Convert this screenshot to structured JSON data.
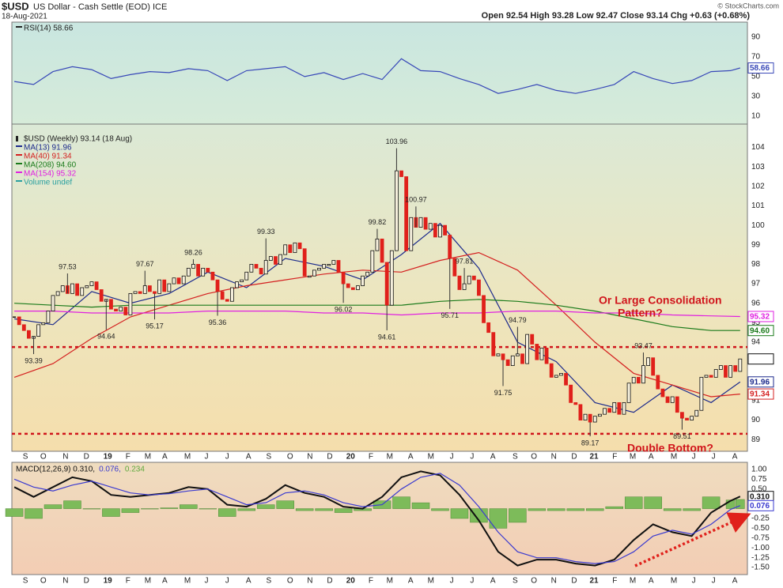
{
  "header": {
    "symbol": "$USD",
    "name": "US Dollar - Cash Settle (EOD) ICE",
    "date": "18-Aug-2021",
    "quote": "Open 92.54 High 93.28 Low 92.47 Close 93.14 Chg +0.63 (+0.68%)",
    "credit": "© StockCharts.com"
  },
  "chart_data": [
    {
      "type": "line",
      "ylim": [
        2,
        105
      ],
      "yticks": [
        10,
        30,
        50,
        70,
        90
      ],
      "levels": [
        30,
        50,
        70
      ],
      "grid": true,
      "series": [
        {
          "name": "RSI(14) 58.66",
          "color": "#3848b8",
          "x": [
            0,
            4,
            8,
            12,
            16,
            20,
            24,
            28,
            32,
            36,
            40,
            44,
            48,
            52,
            56,
            60,
            64,
            68,
            72,
            76,
            80,
            84,
            88,
            92,
            96,
            100,
            104,
            108,
            112,
            116,
            120,
            124,
            128,
            132,
            136,
            140,
            144,
            148,
            150
          ],
          "values": [
            45,
            42,
            55,
            60,
            57,
            48,
            52,
            55,
            54,
            58,
            56,
            46,
            56,
            58,
            60,
            50,
            54,
            47,
            53,
            47,
            68,
            56,
            55,
            48,
            42,
            33,
            37,
            42,
            36,
            33,
            37,
            42,
            55,
            48,
            43,
            46,
            55,
            56,
            58.66
          ]
        }
      ]
    },
    {
      "type": "candlestick",
      "title": "$USD (Weekly) 93.14 (18 Aug)",
      "up_color": "#111111",
      "down_color": "#e0201b",
      "xlim": [
        -0.5,
        151.5
      ],
      "xticks": [
        {
          "value": 2.3,
          "label": "S"
        },
        {
          "value": 6.0,
          "label": "O"
        },
        {
          "value": 10.6,
          "label": "N"
        },
        {
          "value": 14.9,
          "label": "D"
        },
        {
          "value": 19.3,
          "label": "19"
        },
        {
          "value": 23.5,
          "label": "F"
        },
        {
          "value": 27.6,
          "label": "M"
        },
        {
          "value": 31.1,
          "label": "A"
        },
        {
          "value": 35.8,
          "label": "M"
        },
        {
          "value": 39.7,
          "label": "J"
        },
        {
          "value": 44.0,
          "label": "J"
        },
        {
          "value": 48.4,
          "label": "A"
        },
        {
          "value": 52.6,
          "label": "S"
        },
        {
          "value": 57.0,
          "label": "O"
        },
        {
          "value": 61.1,
          "label": "N"
        },
        {
          "value": 65.2,
          "label": "D"
        },
        {
          "value": 69.5,
          "label": "20"
        },
        {
          "value": 73.7,
          "label": "F"
        },
        {
          "value": 77.6,
          "label": "M"
        },
        {
          "value": 81.9,
          "label": "A"
        },
        {
          "value": 86.1,
          "label": "M"
        },
        {
          "value": 90.4,
          "label": "J"
        },
        {
          "value": 94.6,
          "label": "J"
        },
        {
          "value": 98.9,
          "label": "A"
        },
        {
          "value": 103.5,
          "label": "S"
        },
        {
          "value": 107.4,
          "label": "O"
        },
        {
          "value": 111.5,
          "label": "N"
        },
        {
          "value": 115.7,
          "label": "D"
        },
        {
          "value": 119.8,
          "label": "21"
        },
        {
          "value": 124.1,
          "label": "F"
        },
        {
          "value": 127.8,
          "label": "M"
        },
        {
          "value": 131.6,
          "label": "A"
        },
        {
          "value": 136.3,
          "label": "M"
        },
        {
          "value": 140.4,
          "label": "J"
        },
        {
          "value": 144.5,
          "label": "J"
        },
        {
          "value": 148.9,
          "label": "A"
        }
      ],
      "ylim": [
        88.4,
        105.2
      ],
      "yticks": [
        89,
        90,
        91,
        92,
        93,
        94,
        95,
        96,
        97,
        98,
        99,
        100,
        101,
        102,
        103,
        104
      ],
      "grid": true,
      "close": [
        95.3,
        94.9,
        94.6,
        94.2,
        94.3,
        94.9,
        95.0,
        95.6,
        96.4,
        96.6,
        96.9,
        96.5,
        97.0,
        96.4,
        96.8,
        96.9,
        97.1,
        96.7,
        96.1,
        96.2,
        95.7,
        95.6,
        95.8,
        95.4,
        96.5,
        96.6,
        96.5,
        96.9,
        96.6,
        96.5,
        97.2,
        96.6,
        97.0,
        97.3,
        97.0,
        97.4,
        97.8,
        98.0,
        97.4,
        97.8,
        97.6,
        97.2,
        96.6,
        96.2,
        96.1,
        96.8,
        97.1,
        97.2,
        97.6,
        98.0,
        97.8,
        97.5,
        98.2,
        98.4,
        98.0,
        98.5,
        99.0,
        98.6,
        99.1,
        98.8,
        97.4,
        97.4,
        97.7,
        97.8,
        98.0,
        98.0,
        98.2,
        97.6,
        97.0,
        96.8,
        96.7,
        96.9,
        97.4,
        97.6,
        98.7,
        99.3,
        98.1,
        95.9,
        98.7,
        102.8,
        102.5,
        98.7,
        100.4,
        99.9,
        100.4,
        99.8,
        100.1,
        99.4,
        100.0,
        99.5,
        98.3,
        97.4,
        96.7,
        97.0,
        97.4,
        97.2,
        96.4,
        95.0,
        94.5,
        93.3,
        93.4,
        93.1,
        92.8,
        93.3,
        93.4,
        92.9,
        94.4,
        93.9,
        93.1,
        93.7,
        92.9,
        92.2,
        92.3,
        92.4,
        91.8,
        90.9,
        90.8,
        90.0,
        90.3,
        89.9,
        90.2,
        90.3,
        90.6,
        90.4,
        90.9,
        90.3,
        90.9,
        91.9,
        92.2,
        91.9,
        92.8,
        93.2,
        92.3,
        91.6,
        91.2,
        90.9,
        91.2,
        90.4,
        90.1,
        90.0,
        90.2,
        90.5,
        92.2,
        92.3,
        92.2,
        92.6,
        92.8,
        92.2,
        92.8,
        92.5,
        93.14
      ],
      "series": [
        {
          "name": "MA(13) 91.96",
          "color": "#1c2a8c",
          "x": [
            0,
            8,
            16,
            24,
            32,
            40,
            48,
            56,
            64,
            72,
            80,
            88,
            96,
            104,
            112,
            120,
            128,
            136,
            144,
            150
          ],
          "values": [
            95.2,
            94.9,
            96.6,
            96.0,
            96.5,
            97.6,
            96.8,
            98.3,
            97.9,
            97.2,
            98.5,
            100.1,
            97.8,
            94.0,
            93.0,
            90.9,
            90.4,
            91.8,
            90.9,
            91.96
          ]
        },
        {
          "name": "MA(40) 91.34",
          "color": "#d42020",
          "x": [
            0,
            8,
            16,
            24,
            32,
            40,
            48,
            56,
            64,
            72,
            80,
            88,
            96,
            104,
            112,
            120,
            128,
            136,
            144,
            150
          ],
          "values": [
            92.2,
            92.9,
            94.2,
            95.3,
            95.9,
            96.5,
            96.9,
            97.2,
            97.5,
            97.7,
            97.6,
            98.2,
            98.6,
            97.7,
            95.9,
            94.0,
            92.4,
            91.8,
            91.2,
            91.34
          ]
        },
        {
          "name": "MA(208) 94.60",
          "color": "#1a7a1a",
          "last_label": "94.60",
          "x": [
            0,
            8,
            16,
            24,
            32,
            40,
            48,
            56,
            64,
            72,
            80,
            88,
            96,
            104,
            112,
            120,
            128,
            136,
            144,
            150
          ],
          "values": [
            96.0,
            95.9,
            95.8,
            95.9,
            95.9,
            95.9,
            95.9,
            95.9,
            95.9,
            95.9,
            95.9,
            96.1,
            96.2,
            96.1,
            95.9,
            95.6,
            95.2,
            94.8,
            94.6,
            94.6
          ]
        },
        {
          "name": "MA(154) 95.32",
          "color": "#e020e0",
          "x": [
            0,
            8,
            16,
            24,
            32,
            40,
            48,
            56,
            64,
            72,
            80,
            88,
            96,
            104,
            112,
            120,
            128,
            136,
            144,
            150
          ],
          "values": [
            95.6,
            95.6,
            95.5,
            95.5,
            95.5,
            95.6,
            95.6,
            95.6,
            95.5,
            95.5,
            95.4,
            95.5,
            95.5,
            95.6,
            95.6,
            95.5,
            95.5,
            95.4,
            95.35,
            95.32
          ]
        }
      ],
      "volume_label": "Volume undef",
      "volume_color": "#2aa0a0",
      "annotations": [
        {
          "x": 4,
          "value": 93.39
        },
        {
          "x": 11,
          "value": 97.53
        },
        {
          "x": 19,
          "value": 94.64
        },
        {
          "x": 27,
          "value": 97.67
        },
        {
          "x": 29,
          "value": 95.17
        },
        {
          "x": 37,
          "value": 98.26
        },
        {
          "x": 42,
          "value": 95.36
        },
        {
          "x": 52,
          "value": 99.33
        },
        {
          "x": 68,
          "value": 96.02
        },
        {
          "x": 75,
          "value": 99.82
        },
        {
          "x": 77,
          "value": 94.61
        },
        {
          "x": 79,
          "value": 103.96
        },
        {
          "x": 83,
          "value": 100.97
        },
        {
          "x": 93,
          "value": 97.81
        },
        {
          "x": 90,
          "value": 95.71
        },
        {
          "x": 101,
          "value": 91.75
        },
        {
          "x": 104,
          "value": 94.79
        },
        {
          "x": 119,
          "value": 89.17
        },
        {
          "x": 130,
          "value": 93.47
        },
        {
          "x": 138,
          "value": 89.51
        }
      ],
      "levels": [
        93.75,
        89.3
      ],
      "level_color": "#d0141b",
      "notes": [
        "Or Large Consolidation",
        "Pattern?",
        "Double Bottom?"
      ]
    },
    {
      "type": "macd",
      "ylim": [
        -1.68,
        1.18
      ],
      "grid": true,
      "yticks": [
        {
          "value": 1.0,
          "label": "1.00"
        },
        {
          "value": 0.75,
          "label": "0.75"
        },
        {
          "value": 0.5,
          "label": "0.50"
        },
        {
          "value": 0.25,
          "label": "0.25"
        },
        {
          "value": 0,
          "label": "0.00"
        },
        {
          "value": -0.25,
          "label": "-0.25"
        },
        {
          "value": -0.5,
          "label": "-0.50"
        },
        {
          "value": -0.75,
          "label": "-0.75"
        },
        {
          "value": -1.0,
          "label": "-1.00"
        },
        {
          "value": -1.25,
          "label": "-1.25"
        },
        {
          "value": -1.5,
          "label": "-1.50"
        }
      ],
      "series": [
        {
          "name": "MACD(12,26,9) 0.310,",
          "color": "#111111",
          "last_label": "0.310",
          "x": [
            0,
            4,
            8,
            12,
            16,
            20,
            24,
            28,
            32,
            36,
            40,
            44,
            48,
            52,
            56,
            60,
            64,
            68,
            72,
            76,
            80,
            84,
            88,
            92,
            96,
            100,
            104,
            108,
            112,
            116,
            120,
            124,
            128,
            132,
            136,
            140,
            144,
            148,
            150
          ],
          "values": [
            0.55,
            0.3,
            0.55,
            0.8,
            0.7,
            0.35,
            0.3,
            0.35,
            0.4,
            0.55,
            0.5,
            0.1,
            0.05,
            0.25,
            0.6,
            0.4,
            0.3,
            0.05,
            0.0,
            0.3,
            0.8,
            0.95,
            0.85,
            0.35,
            -0.3,
            -1.1,
            -1.45,
            -1.3,
            -1.3,
            -1.4,
            -1.45,
            -1.3,
            -0.8,
            -0.4,
            -0.6,
            -0.7,
            -0.1,
            0.2,
            0.31
          ]
        },
        {
          "name": "0.076,",
          "color": "#3a3ad0",
          "x": [
            0,
            4,
            8,
            12,
            16,
            20,
            24,
            28,
            32,
            36,
            40,
            44,
            48,
            52,
            56,
            60,
            64,
            68,
            72,
            76,
            80,
            84,
            88,
            92,
            96,
            100,
            104,
            108,
            112,
            116,
            120,
            124,
            128,
            132,
            136,
            140,
            144,
            148,
            150
          ],
          "values": [
            0.75,
            0.55,
            0.45,
            0.6,
            0.7,
            0.55,
            0.4,
            0.35,
            0.38,
            0.45,
            0.5,
            0.3,
            0.1,
            0.15,
            0.4,
            0.45,
            0.35,
            0.15,
            0.05,
            0.1,
            0.5,
            0.8,
            0.9,
            0.6,
            0.05,
            -0.6,
            -1.1,
            -1.25,
            -1.25,
            -1.35,
            -1.4,
            -1.35,
            -1.1,
            -0.7,
            -0.55,
            -0.65,
            -0.4,
            -0.02,
            0.076
          ]
        },
        {
          "name": "0.234",
          "type": "bar",
          "color": "#7dbb5a",
          "x": [
            0,
            4,
            8,
            12,
            16,
            20,
            24,
            28,
            32,
            36,
            40,
            44,
            48,
            52,
            56,
            60,
            64,
            68,
            72,
            76,
            80,
            84,
            88,
            92,
            96,
            100,
            104,
            108,
            112,
            116,
            120,
            124,
            128,
            132,
            136,
            140,
            144,
            148,
            150
          ],
          "values": [
            -0.2,
            -0.25,
            0.1,
            0.2,
            0.0,
            -0.2,
            -0.1,
            0.0,
            0.02,
            0.1,
            0.0,
            -0.2,
            -0.05,
            0.1,
            0.2,
            -0.05,
            -0.05,
            -0.1,
            -0.05,
            0.2,
            0.3,
            0.15,
            -0.05,
            -0.25,
            -0.35,
            -0.5,
            -0.35,
            -0.05,
            -0.05,
            -0.05,
            -0.05,
            0.05,
            0.3,
            0.3,
            -0.05,
            -0.05,
            0.3,
            0.22,
            0.234
          ]
        }
      ]
    }
  ]
}
